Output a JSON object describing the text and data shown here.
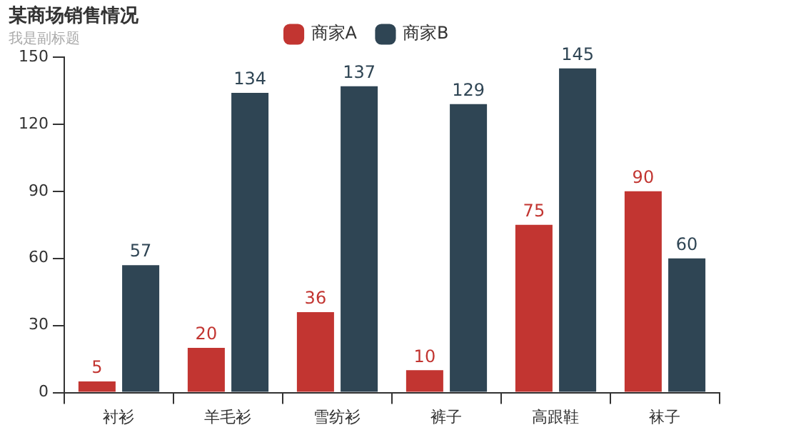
{
  "chart_data": {
    "type": "bar",
    "title": "某商场销售情况",
    "subtitle": "我是副标题",
    "categories": [
      "衬衫",
      "羊毛衫",
      "雪纺衫",
      "裤子",
      "高跟鞋",
      "袜子"
    ],
    "series": [
      {
        "name": "商家A",
        "color": "#c23531",
        "values": [
          5,
          20,
          36,
          10,
          75,
          90
        ]
      },
      {
        "name": "商家B",
        "color": "#2f4554",
        "values": [
          57,
          134,
          137,
          129,
          145,
          60
        ]
      }
    ],
    "ylim": [
      0,
      150
    ],
    "yticks": [
      0,
      30,
      60,
      90,
      120,
      150
    ],
    "grid": false,
    "legend": "top",
    "data_labels": true
  }
}
